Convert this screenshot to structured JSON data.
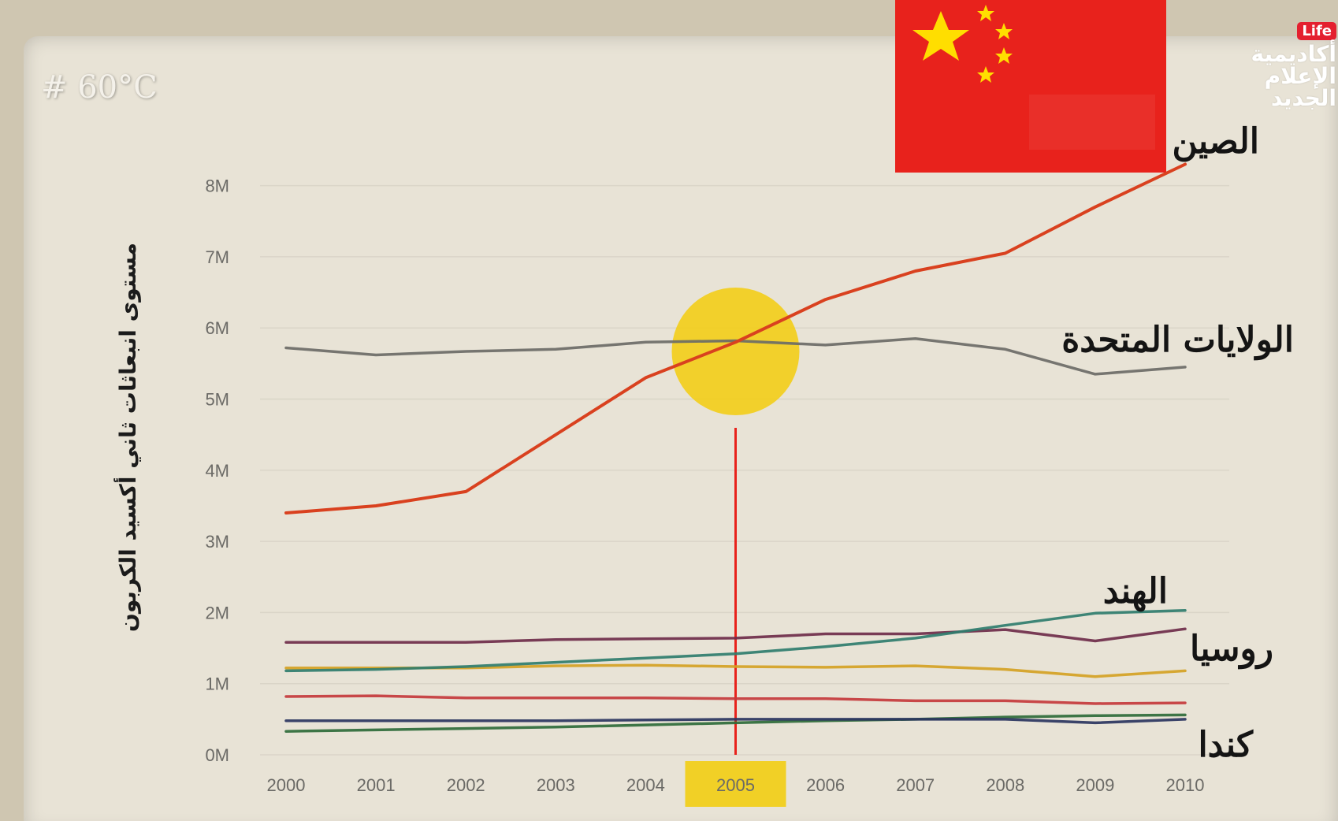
{
  "hashtag": "# 60°C",
  "logo": {
    "badge": "Life",
    "lines": "أكاديمية\nالإعلام\nالجديد"
  },
  "colors": {
    "china": "#d9411f",
    "usa": "#6b6b67",
    "india": "#2f7d6e",
    "russia": "#6e2c4a",
    "yellow_series": "#d4a224",
    "red_series": "#c43a3c",
    "highlight": "#f2cd13",
    "marker": "#e8221c"
  },
  "chart_data": {
    "type": "line",
    "x": [
      "2000",
      "2001",
      "2002",
      "2003",
      "2004",
      "2005",
      "2006",
      "2007",
      "2008",
      "2009",
      "2010"
    ],
    "xlabel": "",
    "ylabel": "مستوى انبعاثات ثاني أكسيد الكربون",
    "yticks": [
      "0M",
      "1M",
      "2M",
      "3M",
      "4M",
      "5M",
      "6M",
      "7M",
      "8M"
    ],
    "ylim": [
      0,
      8.5
    ],
    "highlight_year": "2005",
    "series": [
      {
        "name": "الصين",
        "color": "#d9411f",
        "values": [
          3.4,
          3.5,
          3.7,
          4.5,
          5.3,
          5.8,
          6.4,
          6.8,
          7.05,
          7.7,
          8.3
        ]
      },
      {
        "name": "الولايات المتحدة",
        "color": "#6b6b67",
        "values": [
          5.72,
          5.62,
          5.67,
          5.7,
          5.8,
          5.82,
          5.76,
          5.85,
          5.7,
          5.35,
          5.45
        ]
      },
      {
        "name": "الهند",
        "color": "#2f7d6e",
        "values": [
          1.18,
          1.2,
          1.24,
          1.3,
          1.36,
          1.42,
          1.52,
          1.64,
          1.82,
          1.99,
          2.03
        ]
      },
      {
        "name": "روسيا",
        "color": "#6e2c4a",
        "values": [
          1.58,
          1.58,
          1.58,
          1.62,
          1.63,
          1.64,
          1.7,
          1.7,
          1.76,
          1.6,
          1.77
        ]
      },
      {
        "name": "",
        "color": "#d4a224",
        "values": [
          1.22,
          1.22,
          1.22,
          1.25,
          1.26,
          1.24,
          1.23,
          1.25,
          1.2,
          1.1,
          1.18
        ]
      },
      {
        "name": "",
        "color": "#c43a3c",
        "values": [
          0.82,
          0.83,
          0.8,
          0.8,
          0.8,
          0.79,
          0.79,
          0.76,
          0.76,
          0.72,
          0.73
        ]
      },
      {
        "name": "",
        "color": "#2a3560",
        "values": [
          0.48,
          0.48,
          0.48,
          0.48,
          0.49,
          0.5,
          0.5,
          0.5,
          0.5,
          0.45,
          0.5
        ]
      },
      {
        "name": "كندا",
        "color": "#2e6b3a",
        "values": [
          0.33,
          0.35,
          0.37,
          0.39,
          0.42,
          0.45,
          0.48,
          0.5,
          0.53,
          0.55,
          0.56
        ]
      }
    ]
  }
}
